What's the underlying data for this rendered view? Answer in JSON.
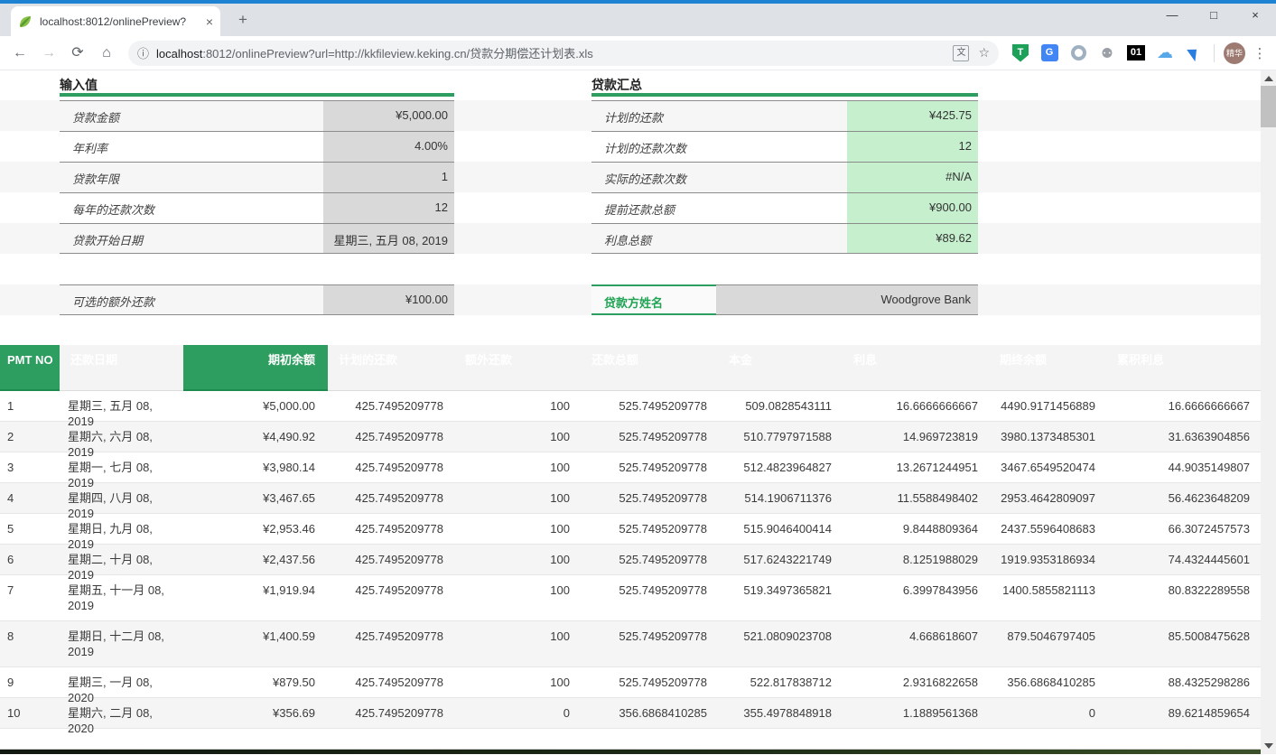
{
  "browser": {
    "tab_title": "localhost:8012/onlinePreview?",
    "url_host": "localhost",
    "url_rest": ":8012/onlinePreview?url=http://kkfileview.keking.cn/贷款分期偿还计划表.xls",
    "profile_label": "精华",
    "ext_badge_01": "01",
    "ext_shield_letter": "T",
    "ext_translate_letter": "G"
  },
  "icons": {
    "back": "←",
    "forward": "→",
    "reload": "⟳",
    "home": "⌂",
    "info": "ⓘ",
    "star": "☆",
    "translate_small": "文",
    "tab_close": "×",
    "new_tab": "+",
    "minimize": "—",
    "maximize": "□",
    "close": "×",
    "menu_dots": "⋮",
    "cloud": "☁",
    "tree": "⚉"
  },
  "colors": {
    "accent_green": "#2e9d60",
    "green_dark": "#1d8a4e",
    "light_green_cell": "#c6efce",
    "gray_cell": "#d9d9d9",
    "stripe": "#f6f6f6"
  },
  "inputs": {
    "title": "输入值",
    "rows": [
      {
        "label": "贷款金额",
        "value": "¥5,000.00"
      },
      {
        "label": "年利率",
        "value": "4.00%"
      },
      {
        "label": "贷款年限",
        "value": "1"
      },
      {
        "label": "每年的还款次数",
        "value": "12"
      },
      {
        "label": "贷款开始日期",
        "value": "星期三, 五月 08, 2019"
      }
    ]
  },
  "summary": {
    "title": "贷款汇总",
    "rows": [
      {
        "label": "计划的还款",
        "value": "¥425.75"
      },
      {
        "label": "计划的还款次数",
        "value": "12"
      },
      {
        "label": "实际的还款次数",
        "value": "#N/A"
      },
      {
        "label": "提前还款总额",
        "value": "¥900.00"
      },
      {
        "label": "利息总额",
        "value": "¥89.62"
      }
    ]
  },
  "extra": {
    "label": "可选的额外还款",
    "value": "¥100.00"
  },
  "lender": {
    "label": "贷款方姓名",
    "value": "Woodgrove Bank"
  },
  "schedule": {
    "headers": [
      "PMT NO",
      "还款日期",
      "期初余额",
      "计划的还款",
      "额外还款",
      "还款总额",
      "本金",
      "利息",
      "期终余额",
      "累积利息"
    ],
    "rows": [
      [
        "1",
        "星期三, 五月 08, 2019",
        "¥5,000.00",
        "425.7495209778",
        "100",
        "525.7495209778",
        "509.0828543111",
        "16.6666666667",
        "4490.9171456889",
        "16.6666666667"
      ],
      [
        "2",
        "星期六, 六月 08, 2019",
        "¥4,490.92",
        "425.7495209778",
        "100",
        "525.7495209778",
        "510.7797971588",
        "14.969723819",
        "3980.1373485301",
        "31.6363904856"
      ],
      [
        "3",
        "星期一, 七月 08, 2019",
        "¥3,980.14",
        "425.7495209778",
        "100",
        "525.7495209778",
        "512.4823964827",
        "13.2671244951",
        "3467.6549520474",
        "44.9035149807"
      ],
      [
        "4",
        "星期四, 八月 08, 2019",
        "¥3,467.65",
        "425.7495209778",
        "100",
        "525.7495209778",
        "514.1906711376",
        "11.5588498402",
        "2953.4642809097",
        "56.4623648209"
      ],
      [
        "5",
        "星期日, 九月 08, 2019",
        "¥2,953.46",
        "425.7495209778",
        "100",
        "525.7495209778",
        "515.9046400414",
        "9.8448809364",
        "2437.5596408683",
        "66.3072457573"
      ],
      [
        "6",
        "星期二, 十月 08, 2019",
        "¥2,437.56",
        "425.7495209778",
        "100",
        "525.7495209778",
        "517.6243221749",
        "8.1251988029",
        "1919.9353186934",
        "74.4324445601"
      ],
      [
        "7",
        "星期五, 十一月 08, 2019",
        "¥1,919.94",
        "425.7495209778",
        "100",
        "525.7495209778",
        "519.3497365821",
        "6.3997843956",
        "1400.5855821113",
        "80.8322289558"
      ],
      [
        "8",
        "星期日, 十二月 08, 2019",
        "¥1,400.59",
        "425.7495209778",
        "100",
        "525.7495209778",
        "521.0809023708",
        "4.668618607",
        "879.5046797405",
        "85.5008475628"
      ],
      [
        "9",
        "星期三, 一月 08, 2020",
        "¥879.50",
        "425.7495209778",
        "100",
        "525.7495209778",
        "522.817838712",
        "2.9316822658",
        "356.6868410285",
        "88.4325298286"
      ],
      [
        "10",
        "星期六, 二月 08, 2020",
        "¥356.69",
        "425.7495209778",
        "0",
        "356.6868410285",
        "355.4978848918",
        "1.1889561368",
        "0",
        "89.6214859654"
      ]
    ]
  }
}
